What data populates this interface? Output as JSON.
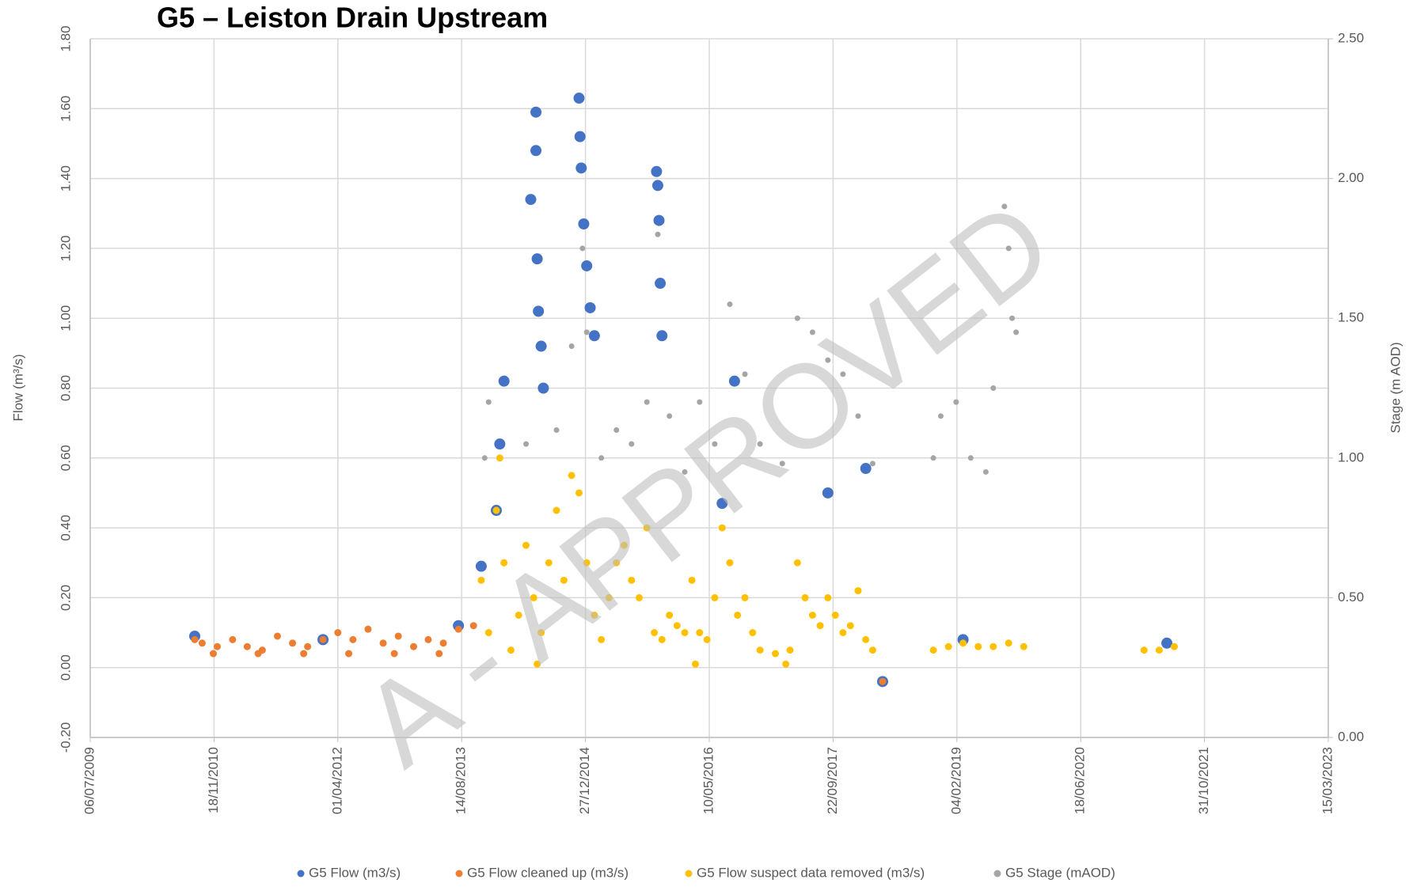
{
  "chart_data": {
    "type": "scatter",
    "title": "G5 – Leiston Drain Upstream",
    "ylabel": "Flow (m³/s)",
    "y2label": "Stage (m AOD)",
    "watermark": "A - APPROVED",
    "grid": true,
    "legend": "bottom",
    "xlim": [
      "06/07/2009",
      "15/03/2023"
    ],
    "xticks": [
      "06/07/2009",
      "18/11/2010",
      "01/04/2012",
      "14/08/2013",
      "27/12/2014",
      "10/05/2016",
      "22/09/2017",
      "04/02/2019",
      "18/06/2020",
      "31/10/2021",
      "15/03/2023"
    ],
    "ylim": [
      -0.2,
      1.8
    ],
    "yticks": [
      {
        "value": -0.2,
        "label": "-0.20"
      },
      {
        "value": 0,
        "label": "0.00"
      },
      {
        "value": 0.2,
        "label": "0.20"
      },
      {
        "value": 0.4,
        "label": "0.40"
      },
      {
        "value": 0.6,
        "label": "0.60"
      },
      {
        "value": 0.8,
        "label": "0.80"
      },
      {
        "value": 1,
        "label": "1.00"
      },
      {
        "value": 1.2,
        "label": "1.20"
      },
      {
        "value": 1.4,
        "label": "1.40"
      },
      {
        "value": 1.6,
        "label": "1.60"
      },
      {
        "value": 1.8,
        "label": "1.80"
      }
    ],
    "y2lim": [
      0,
      2.5
    ],
    "y2ticks": [
      {
        "value": 0,
        "label": "0.00"
      },
      {
        "value": 0.5,
        "label": "0.50"
      },
      {
        "value": 1,
        "label": "1.00"
      },
      {
        "value": 1.5,
        "label": "1.50"
      },
      {
        "value": 2,
        "label": "2.00"
      },
      {
        "value": 2.5,
        "label": "2.50"
      }
    ],
    "series": [
      {
        "name": "G5 Flow (m3/s)",
        "color": "#4472c4",
        "x": [
          "01/09/2010",
          "01/02/2012",
          "01/08/2013",
          "01/11/2013",
          "01/01/2014",
          "15/01/2014",
          "01/02/2014",
          "20/05/2014",
          "10/06/2014",
          "10/06/2014",
          "15/06/2014",
          "20/06/2014",
          "01/07/2014",
          "10/07/2014",
          "01/12/2014",
          "05/12/2014",
          "10/12/2014",
          "20/12/2014",
          "01/01/2015",
          "15/01/2015",
          "01/02/2015",
          "10/10/2015",
          "15/10/2015",
          "20/10/2015",
          "25/10/2015",
          "01/11/2015",
          "20/08/2016",
          "01/07/2016",
          "01/09/2017",
          "01/02/2018",
          "10/04/2018",
          "01/03/2019",
          "01/06/2021"
        ],
        "values": [
          0.09,
          0.08,
          0.12,
          0.29,
          0.45,
          0.64,
          0.82,
          1.34,
          1.59,
          1.48,
          1.17,
          1.02,
          0.92,
          0.8,
          1.63,
          1.52,
          1.43,
          1.27,
          1.15,
          1.03,
          0.95,
          1.42,
          1.38,
          1.28,
          1.1,
          0.95,
          0.82,
          0.47,
          0.5,
          0.57,
          -0.04,
          0.08,
          0.07
        ]
      },
      {
        "name": "G5 Flow cleaned up (m3/s)",
        "color": "#ed7d31",
        "x": [
          "01/09/2010",
          "01/10/2010",
          "01/12/2010",
          "01/02/2011",
          "01/04/2011",
          "01/06/2011",
          "01/08/2011",
          "01/10/2011",
          "01/12/2011",
          "01/02/2012",
          "01/04/2012",
          "01/06/2012",
          "01/08/2012",
          "01/10/2012",
          "01/12/2012",
          "01/02/2013",
          "01/04/2013",
          "01/06/2013",
          "01/08/2013",
          "01/10/2013",
          "15/11/2010",
          "15/05/2011",
          "15/11/2011",
          "15/05/2012",
          "15/11/2012",
          "15/05/2013",
          "10/04/2018"
        ],
        "values": [
          0.08,
          0.07,
          0.06,
          0.08,
          0.06,
          0.05,
          0.09,
          0.07,
          0.06,
          0.08,
          0.1,
          0.08,
          0.11,
          0.07,
          0.09,
          0.06,
          0.08,
          0.07,
          0.11,
          0.12,
          0.04,
          0.04,
          0.04,
          0.04,
          0.04,
          0.04,
          -0.04
        ]
      },
      {
        "name": "G5 Flow suspect data removed (m3/s)",
        "color": "#ffc000",
        "x": [
          "01/11/2013",
          "01/12/2013",
          "01/01/2014",
          "15/01/2014",
          "01/02/2014",
          "01/03/2014",
          "01/04/2014",
          "01/05/2014",
          "01/06/2014",
          "01/07/2014",
          "01/08/2014",
          "01/09/2014",
          "01/10/2014",
          "01/11/2014",
          "01/12/2014",
          "01/01/2015",
          "01/02/2015",
          "01/03/2015",
          "01/04/2015",
          "01/05/2015",
          "01/06/2015",
          "01/07/2015",
          "01/08/2015",
          "01/09/2015",
          "01/10/2015",
          "01/11/2015",
          "01/12/2015",
          "01/01/2016",
          "01/02/2016",
          "01/03/2016",
          "01/04/2016",
          "01/05/2016",
          "01/06/2016",
          "01/07/2016",
          "01/08/2016",
          "01/09/2016",
          "01/10/2016",
          "01/11/2016",
          "01/12/2016",
          "01/02/2017",
          "01/04/2017",
          "01/05/2017",
          "01/06/2017",
          "01/07/2017",
          "01/08/2017",
          "01/09/2017",
          "01/10/2017",
          "01/11/2017",
          "01/12/2017",
          "01/01/2018",
          "01/02/2018",
          "01/03/2018",
          "15/06/2014",
          "15/03/2016",
          "15/03/2017",
          "01/11/2018",
          "01/01/2019",
          "01/03/2019",
          "01/05/2019",
          "01/07/2019",
          "01/09/2019",
          "01/11/2019",
          "01/03/2021",
          "01/05/2021",
          "01/07/2021"
        ],
        "values": [
          0.25,
          0.1,
          0.45,
          0.6,
          0.3,
          0.05,
          0.15,
          0.35,
          0.2,
          0.1,
          0.3,
          0.45,
          0.25,
          0.55,
          0.5,
          0.3,
          0.15,
          0.08,
          0.2,
          0.3,
          0.35,
          0.25,
          0.2,
          0.4,
          0.1,
          0.08,
          0.15,
          0.12,
          0.1,
          0.25,
          0.1,
          0.08,
          0.2,
          0.4,
          0.3,
          0.15,
          0.2,
          0.1,
          0.05,
          0.04,
          0.05,
          0.3,
          0.2,
          0.15,
          0.12,
          0.2,
          0.15,
          0.1,
          0.12,
          0.22,
          0.08,
          0.05,
          0.01,
          0.01,
          0.01,
          0.05,
          0.06,
          0.07,
          0.06,
          0.06,
          0.07,
          0.06,
          0.05,
          0.05,
          0.06
        ]
      },
      {
        "name": "G5 Stage (mAOD)",
        "color": "#a5a5a5",
        "axis": "y2",
        "x": [
          "15/11/2013",
          "01/12/2013",
          "01/05/2014",
          "01/07/2014",
          "01/09/2014",
          "01/11/2014",
          "15/12/2014",
          "01/01/2015",
          "01/03/2015",
          "01/05/2015",
          "01/07/2015",
          "01/09/2015",
          "15/10/2015",
          "01/12/2015",
          "01/02/2016",
          "01/04/2016",
          "01/06/2016",
          "01/08/2016",
          "01/10/2016",
          "01/12/2016",
          "01/03/2017",
          "01/05/2017",
          "01/07/2017",
          "01/09/2017",
          "01/11/2017",
          "01/01/2018",
          "01/03/2018",
          "01/11/2018",
          "01/12/2018",
          "01/02/2019",
          "01/04/2019",
          "01/06/2019",
          "01/07/2019",
          "15/08/2019",
          "01/09/2019",
          "15/09/2019",
          "01/10/2019"
        ],
        "values": [
          1.0,
          1.2,
          1.05,
          1.25,
          1.1,
          1.4,
          1.75,
          1.45,
          1.0,
          1.1,
          1.05,
          1.2,
          1.8,
          1.15,
          0.95,
          1.2,
          1.05,
          1.55,
          1.3,
          1.05,
          0.98,
          1.5,
          1.45,
          1.35,
          1.3,
          1.15,
          0.98,
          1.0,
          1.15,
          1.2,
          1.0,
          0.95,
          1.25,
          1.9,
          1.75,
          1.5,
          1.45
        ]
      }
    ]
  }
}
